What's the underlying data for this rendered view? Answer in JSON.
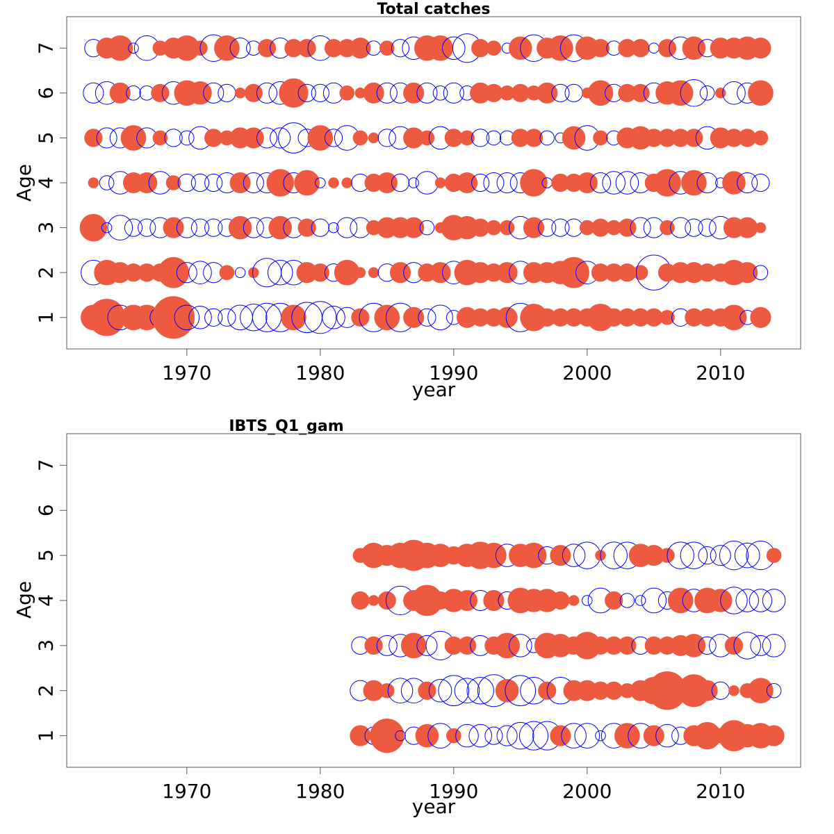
{
  "colors": {
    "positive": "#ee5a40",
    "negative": "#0000ff",
    "frame": "#555555"
  },
  "chart_data": [
    {
      "type": "bubble",
      "title": "Total catches",
      "xlabel": "year",
      "ylabel": "Age",
      "xlim": [
        1961,
        2016
      ],
      "ylim": [
        0.3,
        7.7
      ],
      "x_ticks": [
        1970,
        1980,
        1990,
        2000,
        2010
      ],
      "y_ticks": [
        1,
        2,
        3,
        4,
        5,
        6,
        7
      ],
      "encoding": "circle area proportional to absolute residual; filled red = positive, open blue = negative",
      "years": [
        1963,
        1964,
        1965,
        1966,
        1967,
        1968,
        1969,
        1970,
        1971,
        1972,
        1973,
        1974,
        1975,
        1976,
        1977,
        1978,
        1979,
        1980,
        1981,
        1982,
        1983,
        1984,
        1985,
        1986,
        1987,
        1988,
        1989,
        1990,
        1991,
        1992,
        1993,
        1994,
        1995,
        1996,
        1997,
        1998,
        1999,
        2000,
        2001,
        2002,
        2003,
        2004,
        2005,
        2006,
        2007,
        2008,
        2009,
        2010,
        2011,
        2012,
        2013
      ],
      "ages": [
        1,
        2,
        3,
        4,
        5,
        6,
        7
      ],
      "residuals": [
        [
          0.6,
          1.3,
          -0.6,
          0.6,
          0.6,
          -0.4,
          1.7,
          -0.6,
          -0.5,
          -0.3,
          -0.3,
          -0.6,
          -0.7,
          -0.8,
          -0.8,
          0.6,
          -0.9,
          -1.0,
          -0.5,
          -0.4,
          0.3,
          -0.8,
          0.6,
          -0.8,
          0.4,
          -0.3,
          -0.6,
          -0.2,
          0.4,
          0.3,
          0.3,
          0.4,
          -0.8,
          0.7,
          0.3,
          0.3,
          0.3,
          0.3,
          0.7,
          0.3,
          0.3,
          0.3,
          0.3,
          0.2,
          -0.3,
          0.3,
          0.3,
          0.3,
          0.6,
          -0.2,
          0.4
        ],
        [
          -0.6,
          0.6,
          0.4,
          0.3,
          0.3,
          0.3,
          0.9,
          -0.4,
          -0.5,
          -0.4,
          0.2,
          -0.1,
          0.1,
          -0.8,
          -0.6,
          -0.6,
          0.4,
          0.3,
          -0.3,
          0.6,
          0.1,
          0.1,
          -0.3,
          0.4,
          -0.4,
          0.3,
          0.4,
          -0.5,
          0.6,
          0.4,
          0.3,
          0.4,
          -0.5,
          0.4,
          0.4,
          0.5,
          0.9,
          -0.5,
          0.3,
          0.3,
          0.3,
          0.2,
          -1.2,
          0.3,
          0.4,
          0.4,
          0.3,
          0.3,
          0.6,
          0.4,
          -0.2
        ],
        [
          0.7,
          -0.1,
          -0.6,
          -0.3,
          -0.3,
          -0.4,
          0.4,
          -0.4,
          -0.3,
          -0.3,
          -0.3,
          0.5,
          -0.4,
          -0.4,
          0.5,
          -0.4,
          0.3,
          -0.3,
          -0.1,
          -0.4,
          -0.4,
          0.2,
          0.4,
          0.4,
          0.4,
          -0.2,
          0.1,
          0.6,
          0.5,
          0.3,
          0.2,
          0.2,
          -0.5,
          0.4,
          -0.3,
          -0.3,
          -0.3,
          0.2,
          0.3,
          0.2,
          0.3,
          -0.4,
          -0.4,
          0.2,
          -0.4,
          -0.3,
          -0.3,
          -0.5,
          0.4,
          0.4,
          0.1
        ],
        [
          0.1,
          -0.2,
          -0.5,
          0.4,
          0.4,
          -0.5,
          0.2,
          -0.3,
          -0.3,
          -0.3,
          -0.4,
          0.4,
          -0.4,
          -0.4,
          0.7,
          -0.4,
          0.6,
          -0.1,
          0.1,
          0.1,
          -0.3,
          0.3,
          0.4,
          -0.3,
          -0.1,
          -0.5,
          0.1,
          0.3,
          0.4,
          -0.3,
          -0.4,
          -0.4,
          -0.4,
          0.7,
          -0.1,
          0.3,
          0.3,
          0.4,
          -0.4,
          -0.5,
          -0.5,
          -0.4,
          0.3,
          0.7,
          -0.5,
          0.6,
          -0.4,
          -0.1,
          0.5,
          -0.4,
          -0.3
        ],
        [
          0.3,
          -0.4,
          -0.4,
          0.6,
          -0.4,
          0.2,
          -0.3,
          -0.2,
          -0.5,
          0.3,
          0.2,
          0.4,
          0.4,
          -0.4,
          -0.4,
          -0.9,
          -0.3,
          0.6,
          -0.3,
          -0.6,
          0.2,
          0.1,
          -0.3,
          -0.5,
          0.4,
          0.2,
          -0.5,
          0.3,
          0.2,
          -0.3,
          -0.2,
          -0.2,
          0.3,
          0.3,
          -0.2,
          -0.1,
          0.5,
          -0.6,
          0.2,
          -0.2,
          0.4,
          0.5,
          0.3,
          0.3,
          0.3,
          0.3,
          -0.5,
          0.4,
          0.3,
          0.3,
          0.2
        ],
        [
          -0.4,
          -0.5,
          0.4,
          -0.2,
          -0.2,
          0.3,
          -0.5,
          0.6,
          0.5,
          -0.4,
          -0.3,
          0.1,
          0.3,
          -0.4,
          -0.5,
          0.8,
          -0.3,
          -0.3,
          -0.4,
          0.2,
          0.1,
          0.4,
          -0.4,
          -0.4,
          0.4,
          -0.4,
          -0.2,
          -0.4,
          -0.2,
          0.4,
          0.3,
          0.2,
          0.3,
          0.2,
          0.4,
          -0.3,
          -0.3,
          0.1,
          0.6,
          -0.3,
          0.3,
          0.3,
          -0.4,
          0.5,
          0.6,
          -0.7,
          -0.2,
          0.1,
          -0.5,
          -0.4,
          0.6
        ],
        [
          -0.3,
          0.4,
          0.6,
          -0.1,
          -0.6,
          0.2,
          0.4,
          0.6,
          0.2,
          -0.7,
          0.6,
          -0.4,
          -0.2,
          0.3,
          -0.4,
          0.3,
          0.3,
          -0.6,
          0.3,
          0.3,
          0.4,
          -0.2,
          0.2,
          -0.3,
          -0.5,
          0.6,
          0.6,
          -0.5,
          -0.8,
          0.3,
          0.2,
          -0.1,
          0.5,
          -0.7,
          0.4,
          0.6,
          -0.7,
          0.5,
          0.3,
          -0.2,
          0.3,
          0.3,
          -0.1,
          0.3,
          -0.5,
          0.5,
          -0.3,
          0.4,
          0.4,
          0.5,
          0.4
        ]
      ]
    },
    {
      "type": "bubble",
      "title": "IBTS_Q1_gam",
      "xlabel": "year",
      "ylabel": "Age",
      "xlim": [
        1961,
        2016
      ],
      "ylim": [
        0.3,
        7.7
      ],
      "x_ticks": [
        1970,
        1980,
        1990,
        2000,
        2010
      ],
      "y_ticks": [
        1,
        2,
        3,
        4,
        5,
        6,
        7
      ],
      "encoding": "circle area proportional to absolute residual; filled red = positive, open blue = negative",
      "years": [
        1983,
        1984,
        1985,
        1986,
        1987,
        1988,
        1989,
        1990,
        1991,
        1992,
        1993,
        1994,
        1995,
        1996,
        1997,
        1998,
        1999,
        2000,
        2001,
        2002,
        2003,
        2004,
        2005,
        2006,
        2007,
        2008,
        2009,
        2010,
        2011,
        2012,
        2013,
        2014
      ],
      "ages": [
        1,
        2,
        3,
        4,
        5
      ],
      "residuals": [
        [
          0.4,
          -0.3,
          1.1,
          -0.1,
          -0.3,
          0.5,
          -0.6,
          0.2,
          -0.5,
          -0.5,
          -0.3,
          -0.4,
          -0.7,
          -0.8,
          -0.8,
          0.4,
          -0.6,
          -0.6,
          -0.1,
          -0.6,
          0.6,
          -0.6,
          0.4,
          -0.5,
          -0.3,
          0.4,
          0.7,
          0.2,
          0.9,
          0.5,
          0.6,
          0.4
        ],
        [
          -0.4,
          0.4,
          0.2,
          -0.6,
          -0.6,
          0.3,
          -0.5,
          -0.9,
          -0.6,
          -0.7,
          -1.0,
          0.5,
          -0.9,
          -0.7,
          0.3,
          -0.7,
          0.4,
          0.4,
          0.3,
          0.3,
          0.2,
          0.4,
          0.7,
          1.4,
          0.4,
          1.0,
          0.4,
          -0.3,
          0.1,
          0.2,
          0.6,
          -0.2
        ],
        [
          -0.3,
          0.3,
          -0.4,
          -0.5,
          0.6,
          -0.4,
          -0.8,
          0.3,
          0.3,
          -0.4,
          0.3,
          0.6,
          -0.5,
          -0.2,
          0.6,
          0.5,
          0.3,
          0.7,
          0.3,
          0.3,
          0.3,
          -0.3,
          0.3,
          0.3,
          0.4,
          0.5,
          -0.3,
          -0.5,
          0.3,
          -0.7,
          -0.4,
          -0.5
        ],
        [
          0.3,
          0.1,
          0.3,
          -0.8,
          0.4,
          0.9,
          0.3,
          0.5,
          0.4,
          -0.4,
          0.4,
          -0.3,
          0.6,
          0.5,
          0.5,
          0.3,
          0.1,
          -0.1,
          -0.6,
          0.3,
          -0.2,
          -0.1,
          -0.6,
          -0.3,
          0.6,
          -0.5,
          0.6,
          0.5,
          -0.7,
          -0.5,
          -0.5,
          -0.5
        ],
        [
          0.2,
          0.6,
          0.4,
          0.6,
          0.9,
          0.6,
          0.5,
          0.3,
          0.5,
          0.7,
          0.6,
          -0.5,
          0.5,
          0.6,
          -0.3,
          0.4,
          -0.5,
          -0.7,
          0.1,
          -0.7,
          -0.7,
          0.5,
          0.4,
          0.2,
          -0.7,
          -0.7,
          -0.3,
          -0.4,
          -0.8,
          -0.6,
          -0.8,
          0.2
        ]
      ]
    }
  ]
}
